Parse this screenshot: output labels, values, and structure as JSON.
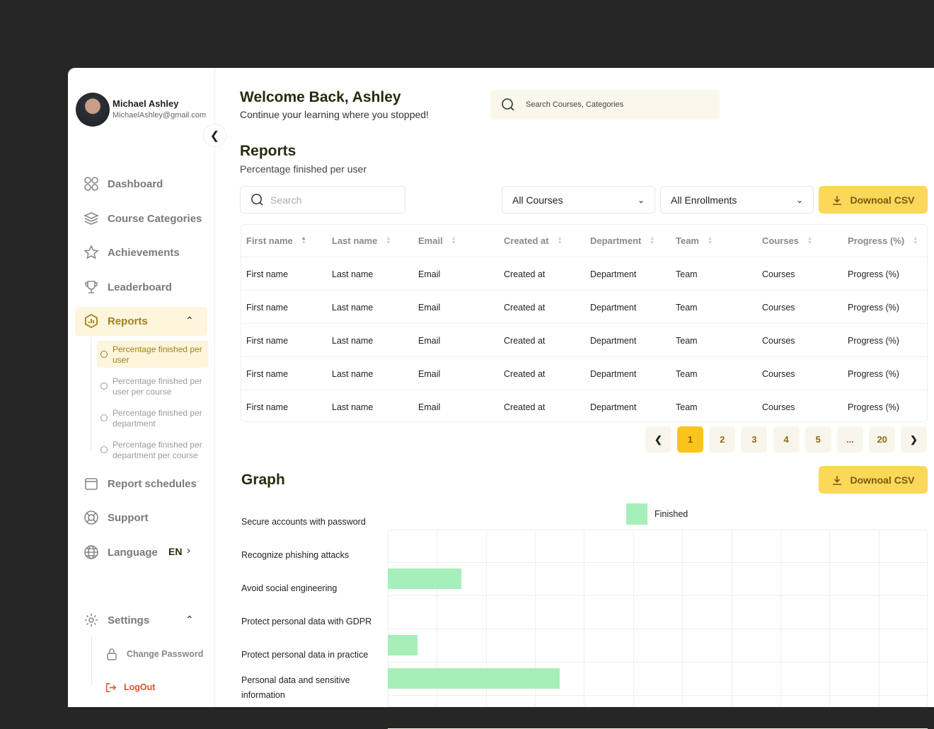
{
  "user": {
    "name": "Michael Ashley",
    "email": "MichaelAshley@gmail.com"
  },
  "sidebar": {
    "items": [
      {
        "label": "Dashboard",
        "icon": "grid-icon"
      },
      {
        "label": "Course Categories",
        "icon": "layers-icon"
      },
      {
        "label": "Achievements",
        "icon": "star-icon"
      },
      {
        "label": "Leaderboard",
        "icon": "trophy-icon"
      },
      {
        "label": "Reports",
        "icon": "chart-hexagon-icon"
      },
      {
        "label": "Report schedules",
        "icon": "calendar-icon"
      },
      {
        "label": "Support",
        "icon": "lifebuoy-icon"
      },
      {
        "label": "Language",
        "icon": "globe-icon"
      }
    ],
    "language_value": "EN",
    "reports_sub": [
      "Percentage finished per user",
      "Percentage finished per user per course",
      "Percentage finished per department",
      "Percentage finished per department per course"
    ],
    "settings": {
      "label": "Settings",
      "change_password": "Change Password",
      "logout": "LogOut"
    }
  },
  "header": {
    "title": "Welcome Back, Ashley",
    "subtitle": "Continue your learning where you stopped!",
    "search_placeholder": "Search Courses, Categories"
  },
  "reports": {
    "title": "Reports",
    "subtitle": "Percentage finished per user",
    "search_placeholder": "Search",
    "courses_select": "All Courses",
    "enrollments_select": "All Enrollments",
    "download": "Downoal CSV"
  },
  "table": {
    "columns": [
      "First name",
      "Last name",
      "Email",
      "Created at",
      "Department",
      "Team",
      "Courses",
      "Progress (%)"
    ],
    "sorted_column": "First name",
    "rows": [
      [
        "First name",
        "Last name",
        "Email",
        "Created at",
        "Department",
        "Team",
        "Courses",
        "Progress (%)"
      ],
      [
        "First name",
        "Last name",
        "Email",
        "Created at",
        "Department",
        "Team",
        "Courses",
        "Progress (%)"
      ],
      [
        "First name",
        "Last name",
        "Email",
        "Created at",
        "Department",
        "Team",
        "Courses",
        "Progress (%)"
      ],
      [
        "First name",
        "Last name",
        "Email",
        "Created at",
        "Department",
        "Team",
        "Courses",
        "Progress (%)"
      ],
      [
        "First name",
        "Last name",
        "Email",
        "Created at",
        "Department",
        "Team",
        "Courses",
        "Progress (%)"
      ]
    ]
  },
  "pagination": {
    "pages": [
      "1",
      "2",
      "3",
      "4",
      "5",
      "...",
      "20"
    ],
    "current": "1"
  },
  "graph": {
    "title": "Graph",
    "download": "Downoal CSV"
  },
  "chart_data": {
    "type": "bar",
    "orientation": "horizontal",
    "categories": [
      "Secure accounts with password",
      "Recognize phishing attacks",
      "Avoid social engineering",
      "Protect personal data with GDPR",
      "Protect personal data in practice",
      "Personal data and sensitive information"
    ],
    "series": [
      {
        "name": "Finished",
        "values": [
          0,
          1.5,
          0,
          0.6,
          3.5,
          0
        ],
        "color": "#a6efba"
      }
    ],
    "xlim": [
      0,
      11
    ],
    "grid": true,
    "legend": "top-center"
  },
  "colors": {
    "accent": "#fbd75a",
    "active_page": "#fcc419",
    "logout": "#e0502a",
    "bar": "#a6efba"
  }
}
